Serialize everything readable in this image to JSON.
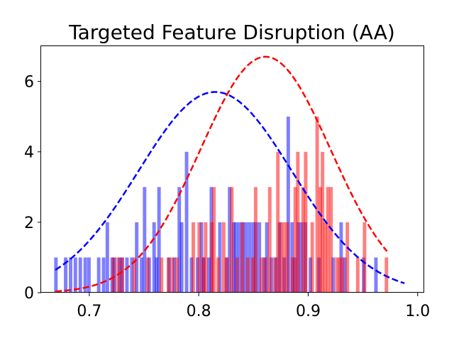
{
  "chart_data": {
    "type": "bar",
    "title": "Targeted Feature Disruption (AA)",
    "xlabel": "",
    "ylabel": "",
    "xlim": [
      0.656,
      1.006
    ],
    "ylim": [
      0,
      7
    ],
    "grid": false,
    "bin_width": 0.0032,
    "x_ticks": [
      0.7,
      0.8,
      0.9,
      1.0
    ],
    "x_tick_labels": [
      "0.7",
      "0.8",
      "0.9",
      "1.0"
    ],
    "y_ticks": [
      0,
      2,
      4,
      6
    ],
    "y_tick_labels": [
      "0",
      "2",
      "4",
      "6"
    ],
    "series": [
      {
        "color": "#0000ff",
        "opacity": 0.5,
        "bins": [
          [
            0.6695,
            1
          ],
          [
            0.6784,
            1
          ],
          [
            0.6829,
            1
          ],
          [
            0.6873,
            1
          ],
          [
            0.6918,
            1
          ],
          [
            0.6963,
            1
          ],
          [
            0.6997,
            1
          ],
          [
            0.7086,
            1
          ],
          [
            0.7131,
            1
          ],
          [
            0.7165,
            2
          ],
          [
            0.7209,
            1
          ],
          [
            0.7231,
            1
          ],
          [
            0.7277,
            1
          ],
          [
            0.7299,
            1
          ],
          [
            0.7344,
            1
          ],
          [
            0.7389,
            1
          ],
          [
            0.7433,
            2
          ],
          [
            0.7478,
            1
          ],
          [
            0.7505,
            3
          ],
          [
            0.7547,
            1
          ],
          [
            0.7592,
            2
          ],
          [
            0.7615,
            1
          ],
          [
            0.7637,
            3
          ],
          [
            0.773,
            1
          ],
          [
            0.7777,
            1
          ],
          [
            0.7822,
            3
          ],
          [
            0.7844,
            2
          ],
          [
            0.7889,
            4
          ],
          [
            0.7934,
            1
          ],
          [
            0.7989,
            1
          ],
          [
            0.8025,
            2
          ],
          [
            0.8047,
            1
          ],
          [
            0.8092,
            1
          ],
          [
            0.8115,
            3
          ],
          [
            0.8193,
            2
          ],
          [
            0.8253,
            1
          ],
          [
            0.8282,
            3
          ],
          [
            0.8319,
            2
          ],
          [
            0.834,
            2
          ],
          [
            0.8371,
            2
          ],
          [
            0.8402,
            2
          ],
          [
            0.8432,
            2
          ],
          [
            0.8465,
            2
          ],
          [
            0.8498,
            2
          ],
          [
            0.8522,
            2
          ],
          [
            0.8554,
            2
          ],
          [
            0.8597,
            1
          ],
          [
            0.8622,
            2
          ],
          [
            0.8663,
            1
          ],
          [
            0.8706,
            1
          ],
          [
            0.8739,
            2
          ],
          [
            0.8781,
            1
          ],
          [
            0.8818,
            5
          ],
          [
            0.8853,
            2
          ],
          [
            0.8877,
            1
          ],
          [
            0.891,
            2
          ],
          [
            0.894,
            2
          ],
          [
            0.8974,
            2
          ],
          [
            0.902,
            1
          ],
          [
            0.9098,
            1
          ],
          [
            0.9228,
            1
          ],
          [
            0.9301,
            2
          ],
          [
            0.9335,
            1
          ],
          [
            0.9507,
            1
          ],
          [
            0.9619,
            1
          ]
        ]
      },
      {
        "color": "#ff0000",
        "opacity": 0.5,
        "bins": [
          [
            0.6719,
            0
          ],
          [
            0.7221,
            1
          ],
          [
            0.7265,
            1
          ],
          [
            0.7302,
            1
          ],
          [
            0.7413,
            1
          ],
          [
            0.7533,
            1
          ],
          [
            0.766,
            1
          ],
          [
            0.7723,
            1
          ],
          [
            0.7761,
            1
          ],
          [
            0.7802,
            1
          ],
          [
            0.795,
            2
          ],
          [
            0.8004,
            2
          ],
          [
            0.8042,
            1
          ],
          [
            0.8063,
            2
          ],
          [
            0.8121,
            2
          ],
          [
            0.8139,
            3
          ],
          [
            0.8177,
            1
          ],
          [
            0.8228,
            2
          ],
          [
            0.8259,
            1
          ],
          [
            0.8302,
            3
          ],
          [
            0.8351,
            1
          ],
          [
            0.8398,
            2
          ],
          [
            0.8447,
            1
          ],
          [
            0.8495,
            1
          ],
          [
            0.852,
            3
          ],
          [
            0.8574,
            1
          ],
          [
            0.8609,
            1
          ],
          [
            0.8649,
            3
          ],
          [
            0.8694,
            1
          ],
          [
            0.8723,
            4
          ],
          [
            0.8751,
            2
          ],
          [
            0.878,
            2
          ],
          [
            0.881,
            2
          ],
          [
            0.8856,
            1
          ],
          [
            0.8882,
            3
          ],
          [
            0.8905,
            4
          ],
          [
            0.8953,
            3
          ],
          [
            0.8977,
            4
          ],
          [
            0.9037,
            2
          ],
          [
            0.9082,
            5
          ],
          [
            0.9111,
            3
          ],
          [
            0.9131,
            4
          ],
          [
            0.9155,
            2
          ],
          [
            0.918,
            3
          ],
          [
            0.9209,
            3
          ],
          [
            0.9262,
            1
          ],
          [
            0.9286,
            1
          ],
          [
            0.9314,
            1
          ],
          [
            0.9358,
            2
          ],
          [
            0.9453,
            1
          ],
          [
            0.9515,
            2
          ],
          [
            0.9601,
            0
          ],
          [
            0.9715,
            1
          ]
        ]
      }
    ],
    "curves": [
      {
        "color": "#0000ff",
        "style": "dashed",
        "mean": 0.815,
        "sd": 0.07,
        "peak": 5.7,
        "x_range": [
          0.669,
          0.988
        ]
      },
      {
        "color": "#ff0000",
        "style": "dashed",
        "mean": 0.861,
        "sd": 0.0595,
        "peak": 6.7,
        "x_range": [
          0.669,
          0.972
        ]
      }
    ]
  }
}
